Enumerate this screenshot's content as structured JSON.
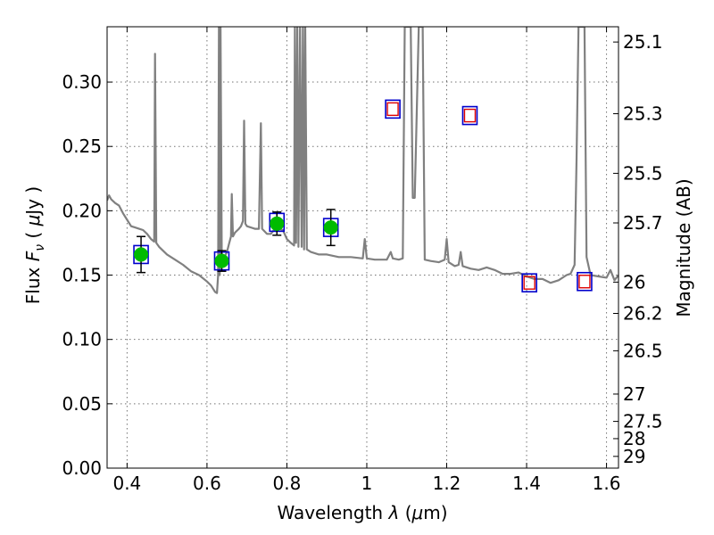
{
  "chart_data": {
    "type": "scatter",
    "xlabel": "Wavelength",
    "xlabel_symbol": "λ",
    "xlabel_unit_open": "(",
    "xlabel_unit_mu": "μ",
    "xlabel_unit_rest": "m)",
    "ylabel": "Flux",
    "ylabel_symbol": "F",
    "ylabel_symbol_sub": "ν",
    "ylabel_unit_open": "(",
    "ylabel_unit_mu": "μ",
    "ylabel_unit_rest": "Jy )",
    "y2label": "Magnitude (AB)",
    "xlim": [
      0.35,
      1.63
    ],
    "ylim": [
      0.0,
      0.343
    ],
    "grid": true,
    "x_ticks": [
      0.4,
      0.6,
      0.8,
      1.0,
      1.2,
      1.4,
      1.6
    ],
    "x_tick_labels": [
      "0.4",
      "0.6",
      "0.8",
      "1",
      "1.2",
      "1.4",
      "1.6"
    ],
    "y_ticks": [
      0.0,
      0.05,
      0.1,
      0.15,
      0.2,
      0.25,
      0.3
    ],
    "y_tick_labels": [
      "0.00",
      "0.05",
      "0.10",
      "0.15",
      "0.20",
      "0.25",
      "0.30"
    ],
    "y2_tick_labels": [
      "25.1",
      "25.3",
      "25.5",
      "25.7",
      "26",
      "26.2",
      "26.5",
      "27",
      "27.5",
      "28",
      "29"
    ],
    "colors": {
      "model": "#808080",
      "observed_fill": "#00bb00",
      "model_box": "#0000cc",
      "upper_limit": "#dd0000",
      "errorbar": "#000000"
    },
    "series": [
      {
        "kind": "line",
        "points": [
          [
            0.35,
            0.208
          ],
          [
            0.355,
            0.212
          ],
          [
            0.36,
            0.209
          ],
          [
            0.37,
            0.206
          ],
          [
            0.38,
            0.204
          ],
          [
            0.39,
            0.198
          ],
          [
            0.4,
            0.193
          ],
          [
            0.41,
            0.188
          ],
          [
            0.42,
            0.187
          ],
          [
            0.43,
            0.186
          ],
          [
            0.44,
            0.185
          ],
          [
            0.45,
            0.182
          ],
          [
            0.46,
            0.178
          ],
          [
            0.468,
            0.176
          ],
          [
            0.47,
            0.322
          ],
          [
            0.473,
            0.175
          ],
          [
            0.48,
            0.172
          ],
          [
            0.5,
            0.166
          ],
          [
            0.52,
            0.162
          ],
          [
            0.54,
            0.158
          ],
          [
            0.56,
            0.153
          ],
          [
            0.58,
            0.15
          ],
          [
            0.6,
            0.145
          ],
          [
            0.61,
            0.142
          ],
          [
            0.62,
            0.137
          ],
          [
            0.625,
            0.136
          ],
          [
            0.628,
            0.15
          ],
          [
            0.63,
            0.343
          ],
          [
            0.632,
            0.15
          ],
          [
            0.634,
            0.343
          ],
          [
            0.637,
            0.16
          ],
          [
            0.64,
            0.161
          ],
          [
            0.645,
            0.165
          ],
          [
            0.65,
            0.168
          ],
          [
            0.655,
            0.174
          ],
          [
            0.66,
            0.18
          ],
          [
            0.662,
            0.213
          ],
          [
            0.665,
            0.18
          ],
          [
            0.67,
            0.183
          ],
          [
            0.68,
            0.186
          ],
          [
            0.685,
            0.188
          ],
          [
            0.69,
            0.192
          ],
          [
            0.693,
            0.27
          ],
          [
            0.696,
            0.19
          ],
          [
            0.7,
            0.188
          ],
          [
            0.72,
            0.186
          ],
          [
            0.73,
            0.186
          ],
          [
            0.735,
            0.268
          ],
          [
            0.738,
            0.186
          ],
          [
            0.75,
            0.182
          ],
          [
            0.76,
            0.182
          ],
          [
            0.77,
            0.186
          ],
          [
            0.78,
            0.186
          ],
          [
            0.79,
            0.185
          ],
          [
            0.8,
            0.178
          ],
          [
            0.81,
            0.175
          ],
          [
            0.818,
            0.173
          ],
          [
            0.82,
            0.343
          ],
          [
            0.823,
            0.175
          ],
          [
            0.826,
            0.343
          ],
          [
            0.829,
            0.172
          ],
          [
            0.833,
            0.343
          ],
          [
            0.837,
            0.172
          ],
          [
            0.84,
            0.343
          ],
          [
            0.843,
            0.17
          ],
          [
            0.846,
            0.343
          ],
          [
            0.85,
            0.17
          ],
          [
            0.86,
            0.168
          ],
          [
            0.88,
            0.166
          ],
          [
            0.9,
            0.166
          ],
          [
            0.93,
            0.164
          ],
          [
            0.96,
            0.164
          ],
          [
            0.99,
            0.163
          ],
          [
            0.995,
            0.178
          ],
          [
            1.0,
            0.163
          ],
          [
            1.02,
            0.162
          ],
          [
            1.05,
            0.162
          ],
          [
            1.06,
            0.168
          ],
          [
            1.065,
            0.163
          ],
          [
            1.08,
            0.162
          ],
          [
            1.09,
            0.163
          ],
          [
            1.095,
            0.343
          ],
          [
            1.11,
            0.343
          ],
          [
            1.115,
            0.21
          ],
          [
            1.12,
            0.21
          ],
          [
            1.13,
            0.343
          ],
          [
            1.14,
            0.343
          ],
          [
            1.145,
            0.162
          ],
          [
            1.16,
            0.161
          ],
          [
            1.18,
            0.16
          ],
          [
            1.195,
            0.162
          ],
          [
            1.2,
            0.178
          ],
          [
            1.205,
            0.16
          ],
          [
            1.22,
            0.157
          ],
          [
            1.23,
            0.158
          ],
          [
            1.235,
            0.168
          ],
          [
            1.24,
            0.157
          ],
          [
            1.26,
            0.155
          ],
          [
            1.28,
            0.154
          ],
          [
            1.3,
            0.156
          ],
          [
            1.32,
            0.154
          ],
          [
            1.34,
            0.151
          ],
          [
            1.36,
            0.151
          ],
          [
            1.38,
            0.152
          ],
          [
            1.4,
            0.149
          ],
          [
            1.42,
            0.147
          ],
          [
            1.44,
            0.147
          ],
          [
            1.46,
            0.144
          ],
          [
            1.48,
            0.146
          ],
          [
            1.5,
            0.15
          ],
          [
            1.51,
            0.151
          ],
          [
            1.52,
            0.158
          ],
          [
            1.525,
            0.24
          ],
          [
            1.53,
            0.343
          ],
          [
            1.545,
            0.343
          ],
          [
            1.55,
            0.164
          ],
          [
            1.56,
            0.15
          ],
          [
            1.58,
            0.149
          ],
          [
            1.6,
            0.148
          ],
          [
            1.61,
            0.154
          ],
          [
            1.62,
            0.146
          ],
          [
            1.63,
            0.15
          ]
        ]
      },
      {
        "kind": "model_photometry",
        "points": [
          {
            "x": 0.435,
            "y": 0.166
          },
          {
            "x": 0.637,
            "y": 0.161
          },
          {
            "x": 0.775,
            "y": 0.191
          },
          {
            "x": 0.91,
            "y": 0.187
          },
          {
            "x": 1.065,
            "y": 0.279
          },
          {
            "x": 1.258,
            "y": 0.274
          },
          {
            "x": 1.407,
            "y": 0.144
          },
          {
            "x": 1.545,
            "y": 0.145
          }
        ]
      },
      {
        "kind": "observed_with_errors",
        "points": [
          {
            "x": 0.435,
            "y": 0.166,
            "err": 0.014
          },
          {
            "x": 0.637,
            "y": 0.161,
            "err": 0.008
          },
          {
            "x": 0.775,
            "y": 0.19,
            "err": 0.009
          },
          {
            "x": 0.91,
            "y": 0.187,
            "err": 0.014
          }
        ]
      },
      {
        "kind": "upper_limits",
        "points": [
          {
            "x": 1.065,
            "y": 0.279
          },
          {
            "x": 1.258,
            "y": 0.274
          },
          {
            "x": 1.407,
            "y": 0.144
          },
          {
            "x": 1.545,
            "y": 0.145
          }
        ]
      }
    ]
  }
}
